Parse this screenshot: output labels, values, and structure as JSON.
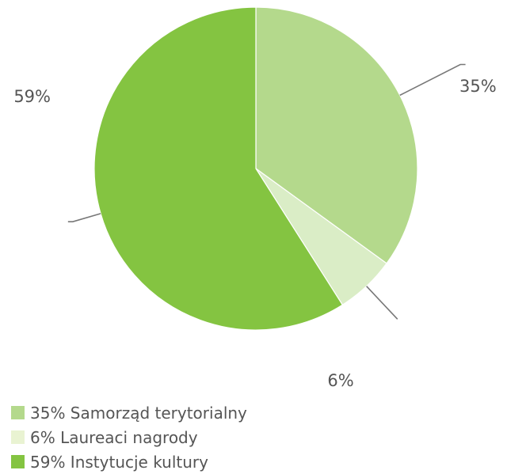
{
  "chart_data": {
    "type": "pie",
    "title": "",
    "slices": [
      {
        "label": "35%",
        "value": 35,
        "color": "#b4d98c",
        "legend": "35% Samorząd terytorialny"
      },
      {
        "label": "6%",
        "value": 6,
        "color": "#daedc6",
        "legend": "6% Laureaci nagrody"
      },
      {
        "label": "59%",
        "value": 59,
        "color": "#84c441",
        "legend": "59% Instytucje kultury"
      }
    ],
    "legend_position": "bottom-left"
  },
  "legend_colors": {
    "samorzad": "#b4d98c",
    "laureaci": "#e9f3d2",
    "instytucje": "#84c441"
  }
}
